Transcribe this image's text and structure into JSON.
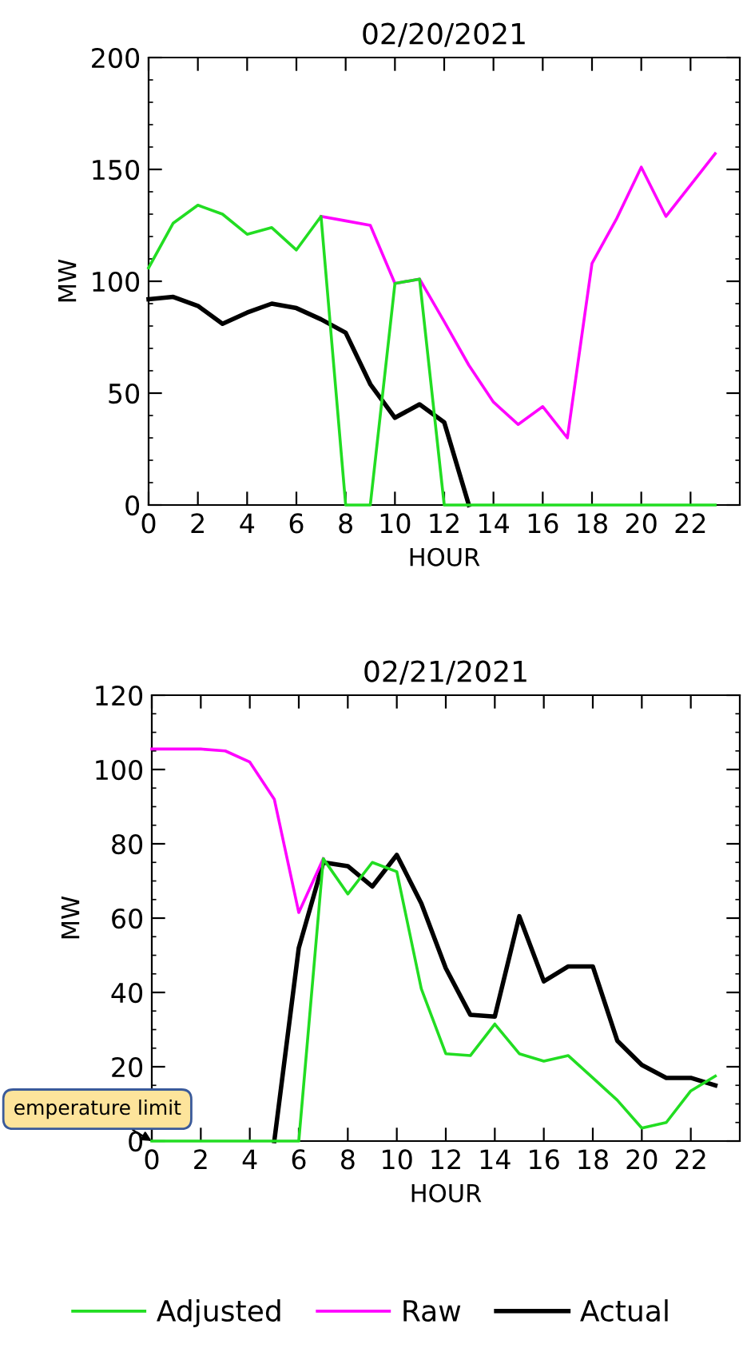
{
  "chart_data": [
    {
      "type": "line",
      "title": "02/20/2021",
      "xlabel": "HOUR",
      "ylabel": "MW",
      "x": [
        0,
        1,
        2,
        3,
        4,
        5,
        6,
        7,
        8,
        9,
        10,
        11,
        12,
        13,
        14,
        15,
        16,
        17,
        18,
        19,
        20,
        21,
        22,
        23
      ],
      "xlim": [
        0,
        24
      ],
      "xticks": [
        0,
        2,
        4,
        6,
        8,
        10,
        12,
        14,
        16,
        18,
        20,
        22
      ],
      "ylim": [
        0,
        200
      ],
      "yticks": [
        0,
        50,
        100,
        150,
        200
      ],
      "grid": false,
      "legend": "bottom",
      "series": [
        {
          "name": "Adjusted",
          "color": "#22dd22",
          "values": [
            106,
            126,
            134,
            130,
            121,
            124,
            114,
            129,
            0,
            0,
            99,
            101,
            0,
            0,
            0,
            0,
            0,
            0,
            0,
            0,
            0,
            0,
            0,
            0
          ]
        },
        {
          "name": "Raw",
          "color": "#ff00ff",
          "values": [
            null,
            null,
            null,
            null,
            null,
            null,
            null,
            129,
            127,
            125,
            99,
            101,
            82,
            62.5,
            46,
            36,
            44,
            30,
            108,
            128,
            151,
            129,
            143,
            157
          ]
        },
        {
          "name": "Actual",
          "color": "#000000",
          "values": [
            92,
            93,
            89,
            81,
            86,
            90,
            88,
            83,
            77,
            54,
            39,
            45,
            37,
            0,
            null,
            null,
            null,
            null,
            null,
            null,
            null,
            null,
            null,
            null
          ]
        }
      ]
    },
    {
      "type": "line",
      "title": "02/21/2021",
      "xlabel": "HOUR",
      "ylabel": "MW",
      "x": [
        0,
        1,
        2,
        3,
        4,
        5,
        6,
        7,
        8,
        9,
        10,
        11,
        12,
        13,
        14,
        15,
        16,
        17,
        18,
        19,
        20,
        21,
        22,
        23
      ],
      "xlim": [
        0,
        24
      ],
      "xticks": [
        0,
        2,
        4,
        6,
        8,
        10,
        12,
        14,
        16,
        18,
        20,
        22
      ],
      "ylim": [
        0,
        120
      ],
      "yticks": [
        0,
        20,
        40,
        60,
        80,
        100,
        120
      ],
      "grid": false,
      "legend": "bottom",
      "annotations": [
        {
          "text": "emperature limit",
          "x": 0,
          "y": 0
        }
      ],
      "series": [
        {
          "name": "Adjusted",
          "color": "#22dd22",
          "values": [
            0,
            0,
            0,
            0,
            0,
            0,
            0,
            76,
            66.5,
            75,
            72.5,
            41,
            23.5,
            23,
            31.5,
            23.5,
            21.5,
            23,
            17,
            11,
            3.5,
            5,
            13.5,
            17.5
          ]
        },
        {
          "name": "Raw",
          "color": "#ff00ff",
          "values": [
            105.5,
            105.5,
            105.5,
            105,
            102,
            92,
            61.5,
            76,
            null,
            null,
            null,
            null,
            null,
            null,
            null,
            null,
            null,
            null,
            null,
            null,
            null,
            null,
            null,
            null
          ]
        },
        {
          "name": "Actual",
          "color": "#000000",
          "values": [
            null,
            null,
            null,
            null,
            null,
            0,
            52,
            75,
            74,
            68.5,
            77,
            64,
            46.5,
            34,
            33.5,
            60.5,
            43,
            47,
            47,
            27,
            20.5,
            17,
            17,
            15
          ]
        }
      ]
    }
  ]
}
